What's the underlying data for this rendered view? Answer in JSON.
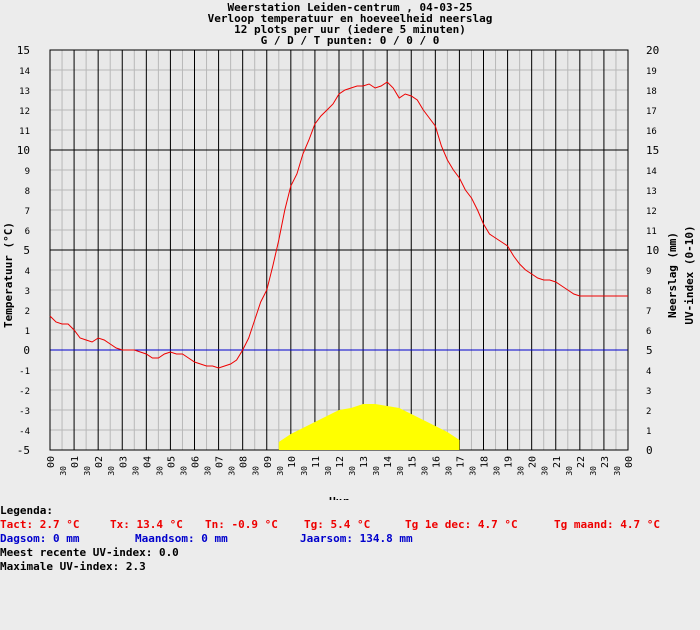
{
  "chart_data": {
    "type": "line",
    "title_lines": [
      "Weerstation Leiden-centrum , 04-03-25",
      "Verloop temperatuur en hoeveelheid neerslag",
      "12 plots per uur (iedere 5 minuten)",
      "G / D / T punten: 0 / 0 / 0"
    ],
    "xlabel": "Uur",
    "ylabel_left": "Temperatuur (°C)",
    "ylabel_right_1": "Neerslag (mm)",
    "ylabel_right_2": "UV-index (0-10)",
    "x_hour_labels": [
      "00",
      "01",
      "02",
      "03",
      "04",
      "05",
      "06",
      "07",
      "08",
      "09",
      "10",
      "11",
      "12",
      "13",
      "14",
      "15",
      "16",
      "17",
      "18",
      "19",
      "20",
      "21",
      "22",
      "23",
      "00"
    ],
    "x_minor_label": "30",
    "y_left_ticks": [
      "15",
      "14",
      "13",
      "12",
      "11",
      "10",
      "9",
      "8",
      "7",
      "6",
      "5",
      "4",
      "3",
      "2",
      "1",
      "0",
      "-1",
      "-2",
      "-3",
      "-4",
      "-5"
    ],
    "y_right_ticks": [
      "20",
      "19",
      "18",
      "17",
      "16",
      "15",
      "14",
      "13",
      "12",
      "11",
      "10",
      "9",
      "8",
      "7",
      "6",
      "5",
      "4",
      "3",
      "2",
      "1",
      "0"
    ],
    "ylim_left": [
      -5,
      15
    ],
    "ylim_right": [
      0,
      20
    ],
    "xlim_hours": [
      0,
      24
    ],
    "grid": true,
    "series": [
      {
        "type": "line",
        "color": "#ee0000",
        "x": [
          0,
          0.25,
          0.5,
          0.75,
          1,
          1.25,
          1.5,
          1.75,
          2,
          2.25,
          2.5,
          2.75,
          3,
          3.25,
          3.5,
          3.75,
          4,
          4.25,
          4.5,
          4.75,
          5,
          5.25,
          5.5,
          5.75,
          6,
          6.25,
          6.5,
          6.75,
          7,
          7.25,
          7.5,
          7.75,
          8,
          8.25,
          8.5,
          8.75,
          9,
          9.25,
          9.5,
          9.75,
          10,
          10.25,
          10.5,
          10.75,
          11,
          11.25,
          11.5,
          11.75,
          12,
          12.25,
          12.5,
          12.75,
          13,
          13.25,
          13.5,
          13.75,
          14,
          14.25,
          14.5,
          14.75,
          15,
          15.25,
          15.5,
          15.75,
          16,
          16.25,
          16.5,
          16.75,
          17,
          17.25,
          17.5,
          17.75,
          18,
          18.25,
          18.5,
          18.75,
          19,
          19.25,
          19.5,
          19.75,
          20,
          20.25,
          20.5,
          20.75,
          21,
          21.25,
          21.5,
          21.75,
          22,
          22.25,
          22.5,
          22.75,
          23,
          23.25,
          23.5,
          23.75,
          24
        ],
        "y": [
          1.7,
          1.4,
          1.3,
          1.3,
          1.0,
          0.6,
          0.5,
          0.4,
          0.6,
          0.5,
          0.3,
          0.1,
          0.0,
          0.0,
          0.0,
          -0.1,
          -0.2,
          -0.4,
          -0.4,
          -0.2,
          -0.1,
          -0.2,
          -0.2,
          -0.4,
          -0.6,
          -0.7,
          -0.8,
          -0.8,
          -0.9,
          -0.8,
          -0.7,
          -0.5,
          0.0,
          0.6,
          1.5,
          2.4,
          3.0,
          4.2,
          5.5,
          7.0,
          8.2,
          8.8,
          9.8,
          10.5,
          11.3,
          11.7,
          12.0,
          12.3,
          12.8,
          13.0,
          13.1,
          13.2,
          13.2,
          13.3,
          13.1,
          13.2,
          13.4,
          13.1,
          12.6,
          12.8,
          12.7,
          12.5,
          12.0,
          11.6,
          11.2,
          10.2,
          9.5,
          9.0,
          8.6,
          8.0,
          7.6,
          7.0,
          6.3,
          5.8,
          5.6,
          5.4,
          5.2,
          4.7,
          4.3,
          4.0,
          3.8,
          3.6,
          3.5,
          3.5,
          3.4,
          3.2,
          3.0,
          2.8,
          2.7,
          2.7,
          2.7,
          2.7,
          2.7,
          2.7,
          2.7,
          2.7,
          2.7
        ]
      },
      {
        "type": "area",
        "color": "#ffff00",
        "axis": "right",
        "x": [
          9.5,
          10,
          10.5,
          11,
          11.5,
          12,
          12.5,
          13,
          13.5,
          14,
          14.5,
          15,
          15.5,
          16,
          16.5,
          17
        ],
        "y": [
          0.4,
          0.8,
          1.1,
          1.4,
          1.7,
          2.0,
          2.1,
          2.3,
          2.3,
          2.2,
          2.1,
          1.8,
          1.5,
          1.2,
          0.9,
          0.5
        ]
      }
    ],
    "zero_line_color": "#0000cc"
  },
  "legend": {
    "heading": "Legenda:",
    "row1": [
      "Tact: 2.7 °C",
      "Tx: 13.4 °C",
      "Tn: -0.9 °C",
      "Tg: 5.4 °C",
      "Tg 1e dec: 4.7 °C",
      "Tg maand: 4.7 °C"
    ],
    "row2": [
      "Dagsom: 0 mm",
      "Maandsom: 0 mm",
      "Jaarsom: 134.8 mm"
    ],
    "uv_recent": "Meest recente UV-index: 0.0",
    "uv_max": "Maximale UV-index: 2.3"
  }
}
